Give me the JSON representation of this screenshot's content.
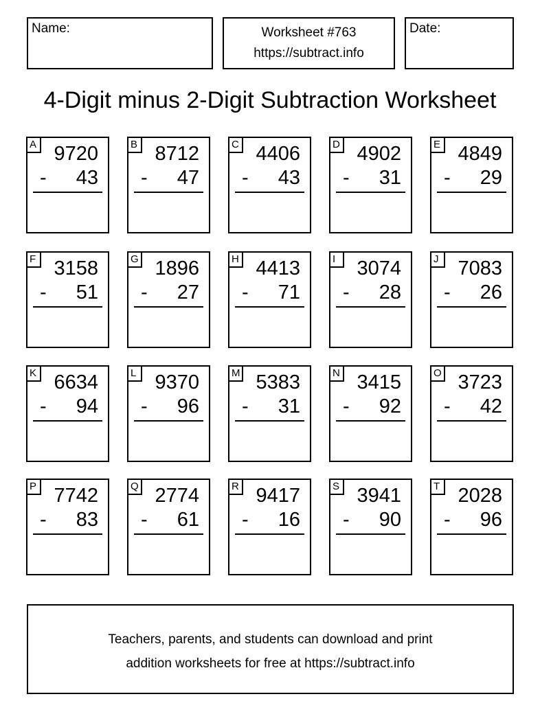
{
  "header": {
    "name_label": "Name:",
    "worksheet_number": "Worksheet #763",
    "worksheet_url": "https://subtract.info",
    "date_label": "Date:"
  },
  "title": "4-Digit minus 2-Digit Subtraction Worksheet",
  "problems": [
    {
      "label": "A",
      "minuend": "9720",
      "subtrahend": "43",
      "operator": "-"
    },
    {
      "label": "B",
      "minuend": "8712",
      "subtrahend": "47",
      "operator": "-"
    },
    {
      "label": "C",
      "minuend": "4406",
      "subtrahend": "43",
      "operator": "-"
    },
    {
      "label": "D",
      "minuend": "4902",
      "subtrahend": "31",
      "operator": "-"
    },
    {
      "label": "E",
      "minuend": "4849",
      "subtrahend": "29",
      "operator": "-"
    },
    {
      "label": "F",
      "minuend": "3158",
      "subtrahend": "51",
      "operator": "-"
    },
    {
      "label": "G",
      "minuend": "1896",
      "subtrahend": "27",
      "operator": "-"
    },
    {
      "label": "H",
      "minuend": "4413",
      "subtrahend": "71",
      "operator": "-"
    },
    {
      "label": "I",
      "minuend": "3074",
      "subtrahend": "28",
      "operator": "-"
    },
    {
      "label": "J",
      "minuend": "7083",
      "subtrahend": "26",
      "operator": "-"
    },
    {
      "label": "K",
      "minuend": "6634",
      "subtrahend": "94",
      "operator": "-"
    },
    {
      "label": "L",
      "minuend": "9370",
      "subtrahend": "96",
      "operator": "-"
    },
    {
      "label": "M",
      "minuend": "5383",
      "subtrahend": "31",
      "operator": "-"
    },
    {
      "label": "N",
      "minuend": "3415",
      "subtrahend": "92",
      "operator": "-"
    },
    {
      "label": "O",
      "minuend": "3723",
      "subtrahend": "42",
      "operator": "-"
    },
    {
      "label": "P",
      "minuend": "7742",
      "subtrahend": "83",
      "operator": "-"
    },
    {
      "label": "Q",
      "minuend": "2774",
      "subtrahend": "61",
      "operator": "-"
    },
    {
      "label": "R",
      "minuend": "9417",
      "subtrahend": "16",
      "operator": "-"
    },
    {
      "label": "S",
      "minuend": "3941",
      "subtrahend": "90",
      "operator": "-"
    },
    {
      "label": "T",
      "minuend": "2028",
      "subtrahend": "96",
      "operator": "-"
    }
  ],
  "footer": {
    "line1": "Teachers, parents, and students can download and print",
    "line2": "addition worksheets for free at https://subtract.info"
  }
}
